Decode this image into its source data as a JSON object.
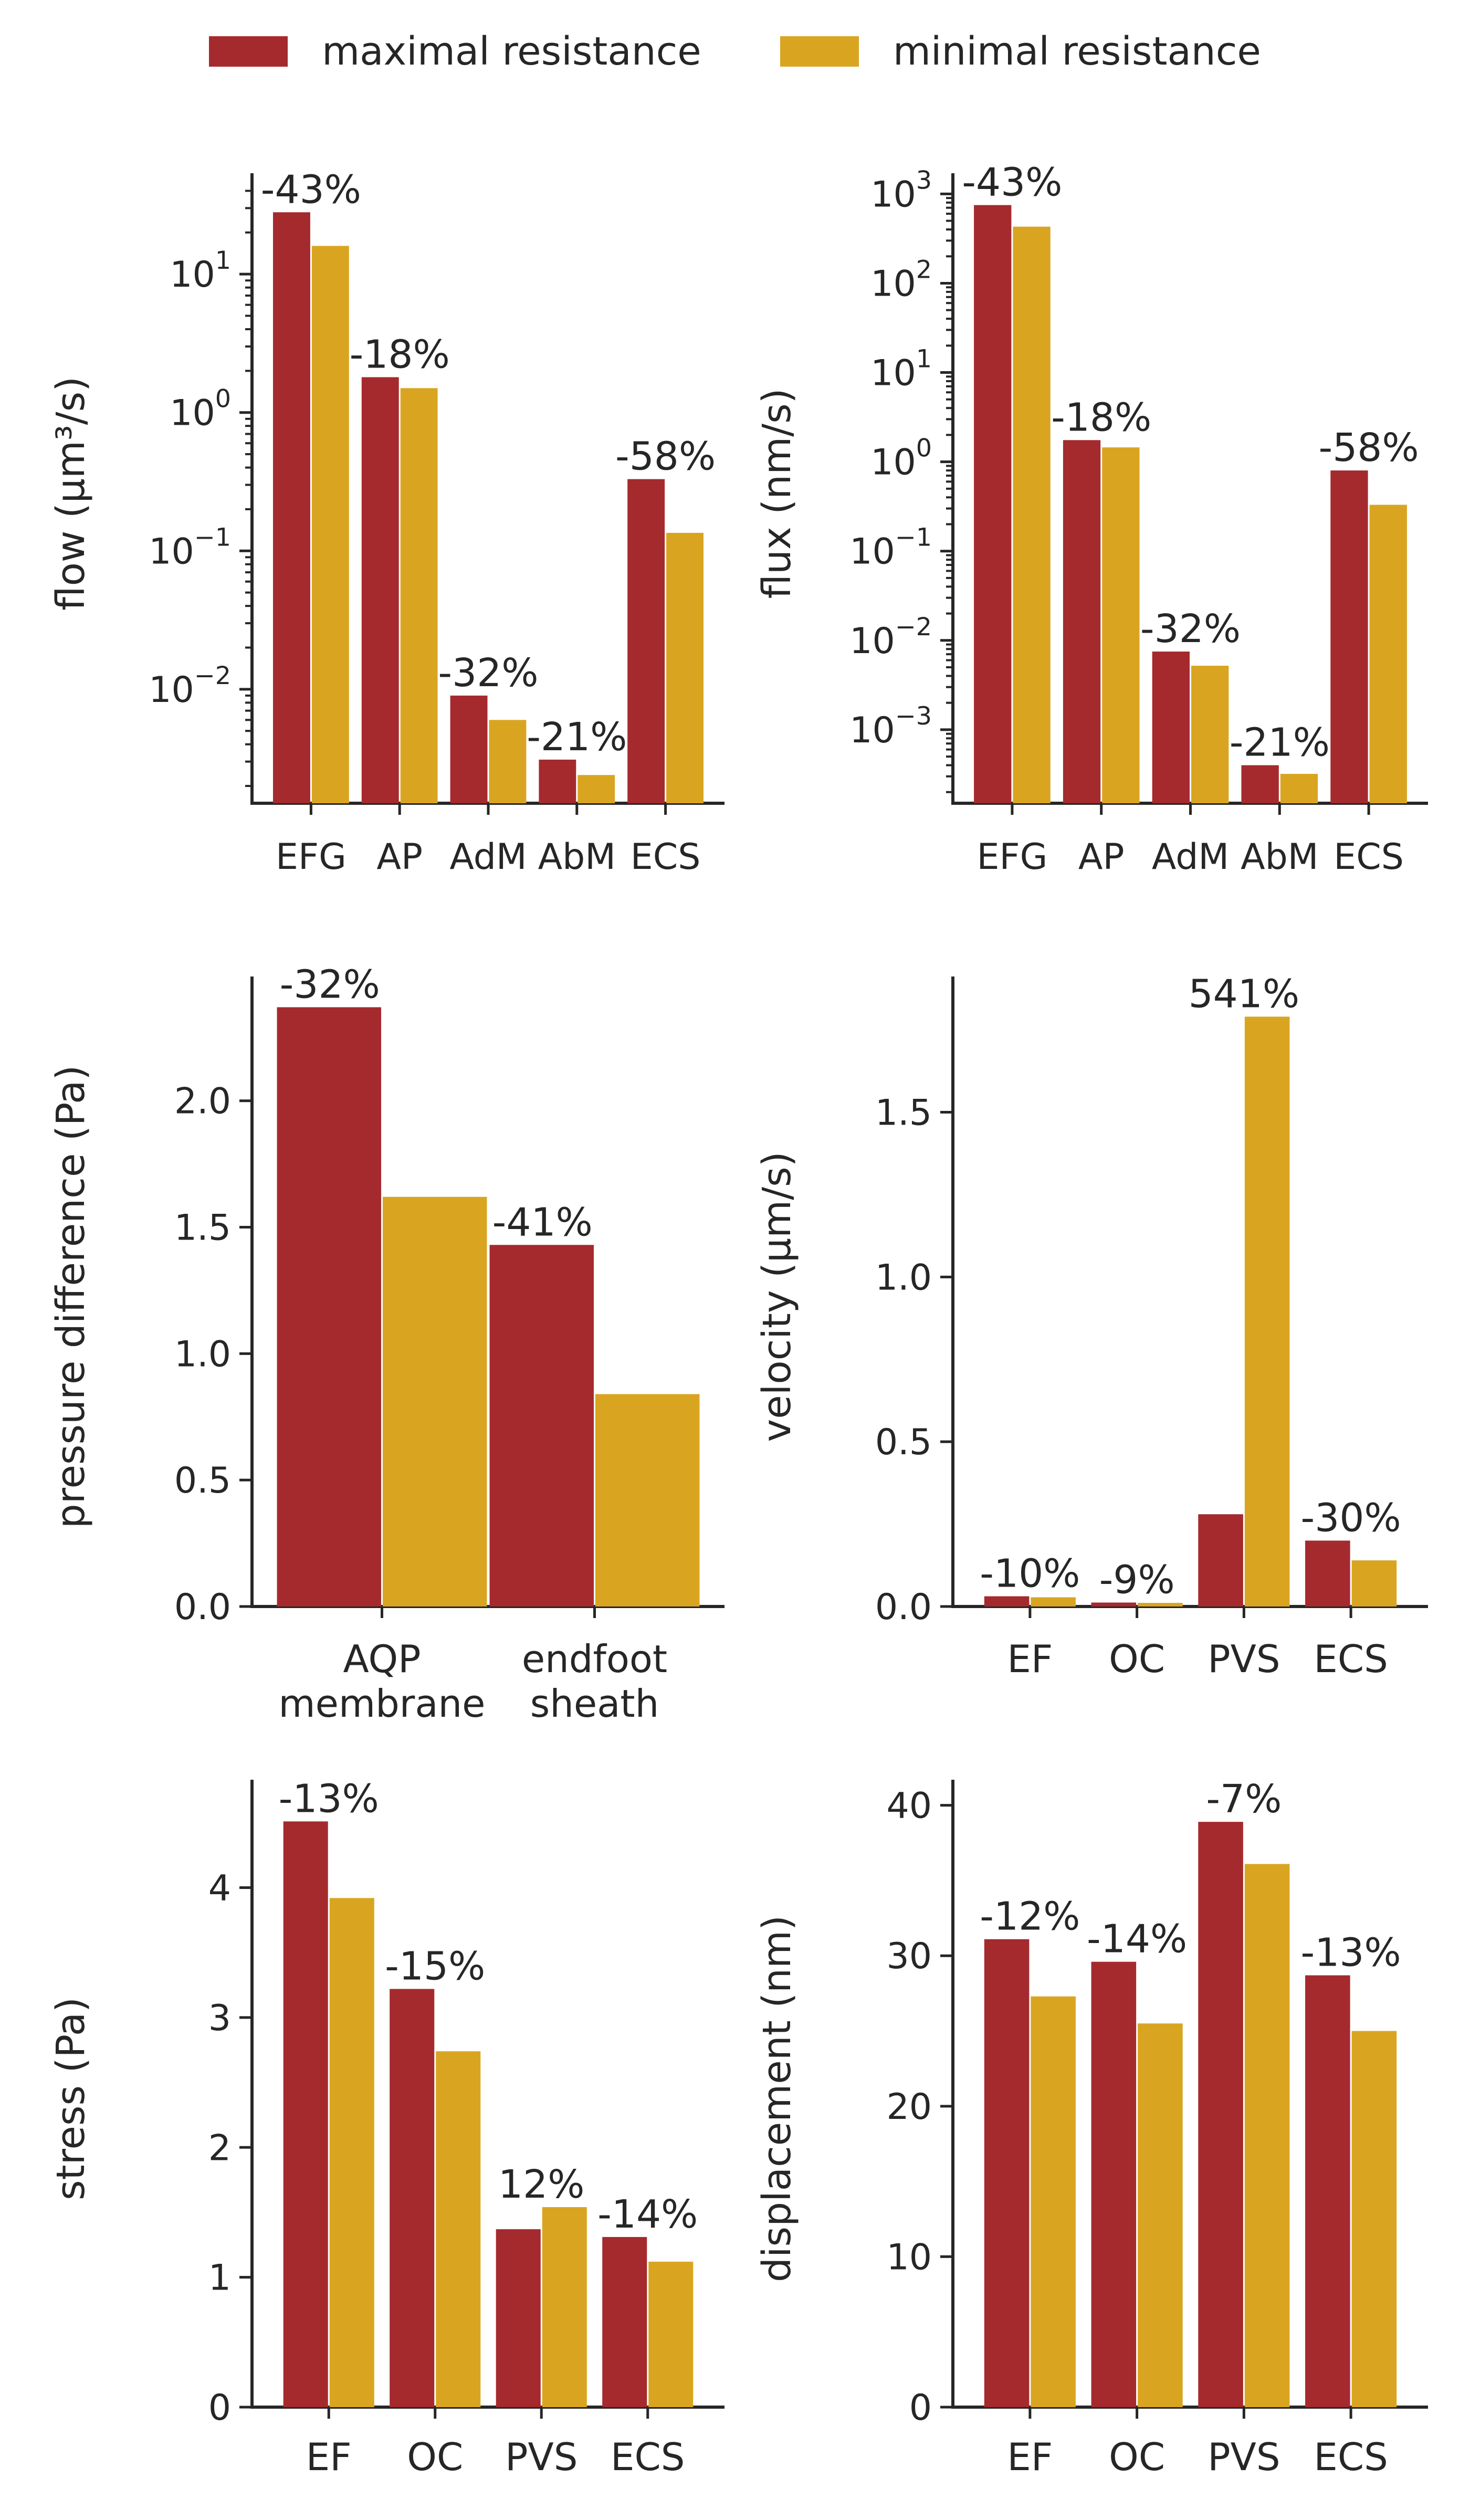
{
  "legend": {
    "items": [
      {
        "label": "maximal resistance",
        "color": "#a52a2d"
      },
      {
        "label": "minimal resistance",
        "color": "#d9a521"
      }
    ]
  },
  "colors": {
    "max": "#a52a2d",
    "min": "#d9a521",
    "axis": "#262626",
    "text": "#262626"
  },
  "chart_data": [
    {
      "id": "flow",
      "type": "bar",
      "scale": "log",
      "ylabel": "flow (μm³/s)",
      "categories": [
        "EFG",
        "AP",
        "AdM",
        "AbM",
        "ECS"
      ],
      "series": [
        {
          "name": "maximal resistance",
          "values": [
            28,
            1.8,
            0.009,
            0.0031,
            0.33
          ]
        },
        {
          "name": "minimal resistance",
          "values": [
            16,
            1.5,
            0.006,
            0.0024,
            0.135
          ]
        }
      ],
      "annotations": [
        "-43%",
        "-18%",
        "-32%",
        "-21%",
        "-58%"
      ],
      "ylim": [
        0.0015,
        45
      ],
      "yticks": [
        {
          "v": 0.01,
          "b": "10",
          "e": "−2"
        },
        {
          "v": 0.1,
          "b": "10",
          "e": "−1"
        },
        {
          "v": 1,
          "b": "10",
          "e": "0"
        },
        {
          "v": 10,
          "b": "10",
          "e": "1"
        }
      ]
    },
    {
      "id": "flux",
      "type": "bar",
      "scale": "log",
      "ylabel": "flux (nm/s)",
      "categories": [
        "EFG",
        "AP",
        "AdM",
        "AbM",
        "ECS"
      ],
      "series": [
        {
          "name": "maximal resistance",
          "values": [
            750,
            1.75,
            0.0075,
            0.0004,
            0.8
          ]
        },
        {
          "name": "minimal resistance",
          "values": [
            430,
            1.45,
            0.0052,
            0.00032,
            0.33
          ]
        }
      ],
      "annotations": [
        "-43%",
        "-18%",
        "-32%",
        "-21%",
        "-58%"
      ],
      "ylim": [
        0.00015,
        1300
      ],
      "yticks": [
        {
          "v": 0.001,
          "b": "10",
          "e": "−3"
        },
        {
          "v": 0.01,
          "b": "10",
          "e": "−2"
        },
        {
          "v": 0.1,
          "b": "10",
          "e": "−1"
        },
        {
          "v": 1,
          "b": "10",
          "e": "0"
        },
        {
          "v": 10,
          "b": "10",
          "e": "1"
        },
        {
          "v": 100,
          "b": "10",
          "e": "2"
        },
        {
          "v": 1000,
          "b": "10",
          "e": "3"
        }
      ]
    },
    {
      "id": "pressure",
      "type": "bar",
      "scale": "linear",
      "ylabel": "pressure difference (Pa)",
      "categories": [
        [
          "AQP",
          "membrane"
        ],
        [
          "endfoot",
          "sheath"
        ]
      ],
      "series": [
        {
          "name": "maximal resistance",
          "values": [
            2.37,
            1.43
          ]
        },
        {
          "name": "minimal resistance",
          "values": [
            1.62,
            0.84
          ]
        }
      ],
      "annotations": [
        "-32%",
        "-41%"
      ],
      "ylim": [
        0,
        2.45
      ],
      "yticks": [
        {
          "v": 0,
          "t": "0.0"
        },
        {
          "v": 0.5,
          "t": "0.5"
        },
        {
          "v": 1,
          "t": "1.0"
        },
        {
          "v": 1.5,
          "t": "1.5"
        },
        {
          "v": 2,
          "t": "2.0"
        }
      ]
    },
    {
      "id": "velocity",
      "type": "bar",
      "scale": "linear",
      "ylabel": "velocity (μm/s)",
      "categories": [
        "EF",
        "OC",
        "PVS",
        "ECS"
      ],
      "series": [
        {
          "name": "maximal resistance",
          "values": [
            0.031,
            0.012,
            0.28,
            0.2
          ]
        },
        {
          "name": "minimal resistance",
          "values": [
            0.028,
            0.011,
            1.79,
            0.14
          ]
        }
      ],
      "annotations": [
        "-10%",
        "-9%",
        "541%",
        "-30%"
      ],
      "ylim": [
        0,
        1.88
      ],
      "yticks": [
        {
          "v": 0,
          "t": "0.0"
        },
        {
          "v": 0.5,
          "t": "0.5"
        },
        {
          "v": 1,
          "t": "1.0"
        },
        {
          "v": 1.5,
          "t": "1.5"
        }
      ]
    },
    {
      "id": "stress",
      "type": "bar",
      "scale": "linear",
      "ylabel": "stress (Pa)",
      "categories": [
        "EF",
        "OC",
        "PVS",
        "ECS"
      ],
      "series": [
        {
          "name": "maximal resistance",
          "values": [
            4.51,
            3.22,
            1.37,
            1.31
          ]
        },
        {
          "name": "minimal resistance",
          "values": [
            3.92,
            2.74,
            1.54,
            1.12
          ]
        }
      ],
      "annotations": [
        "-13%",
        "-15%",
        "12%",
        "-14%"
      ],
      "ylim": [
        0,
        4.75
      ],
      "yticks": [
        {
          "v": 0,
          "t": "0"
        },
        {
          "v": 1,
          "t": "1"
        },
        {
          "v": 2,
          "t": "2"
        },
        {
          "v": 3,
          "t": "3"
        },
        {
          "v": 4,
          "t": "4"
        }
      ]
    },
    {
      "id": "displacement",
      "type": "bar",
      "scale": "linear",
      "ylabel": "displacement (nm)",
      "categories": [
        "EF",
        "OC",
        "PVS",
        "ECS"
      ],
      "series": [
        {
          "name": "maximal resistance",
          "values": [
            31.1,
            29.6,
            38.9,
            28.7
          ]
        },
        {
          "name": "minimal resistance",
          "values": [
            27.3,
            25.5,
            36.1,
            25.0
          ]
        }
      ],
      "annotations": [
        "-12%",
        "-14%",
        "-7%",
        "-13%"
      ],
      "ylim": [
        0,
        41
      ],
      "yticks": [
        {
          "v": 0,
          "t": "0"
        },
        {
          "v": 10,
          "t": "10"
        },
        {
          "v": 20,
          "t": "20"
        },
        {
          "v": 30,
          "t": "30"
        },
        {
          "v": 40,
          "t": "40"
        }
      ]
    }
  ]
}
